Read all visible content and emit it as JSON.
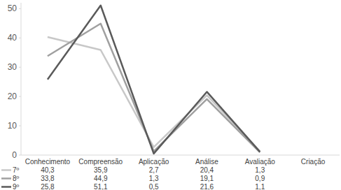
{
  "chart_data": {
    "type": "line",
    "categories": [
      "Conhecimento",
      "Compreensão",
      "Aplicação",
      "Análise",
      "Avaliação",
      "Criação"
    ],
    "series": [
      {
        "name": "7º",
        "color": "#c8c8c8",
        "values": [
          40.3,
          35.9,
          2.7,
          20.4,
          1.3,
          null
        ],
        "value_labels": [
          "40,3",
          "35,9",
          "2,7",
          "20,4",
          "1,3",
          null
        ]
      },
      {
        "name": "8º",
        "color": "#a0a0a0",
        "values": [
          33.8,
          44.9,
          1.3,
          19.1,
          0.9,
          null
        ],
        "value_labels": [
          "33,8",
          "44,9",
          "1,3",
          "19,1",
          "0,9",
          null
        ]
      },
      {
        "name": "9º",
        "color": "#5a5a5a",
        "values": [
          25.8,
          51.1,
          0.5,
          21.6,
          1.1,
          null
        ],
        "value_labels": [
          "25,8",
          "51,1",
          "0,5",
          "21,6",
          "1,1",
          null
        ]
      }
    ],
    "ylim": [
      0,
      52
    ],
    "yticks": [
      0,
      10,
      20,
      30,
      40,
      50
    ],
    "grid": false,
    "data_labels": true
  }
}
